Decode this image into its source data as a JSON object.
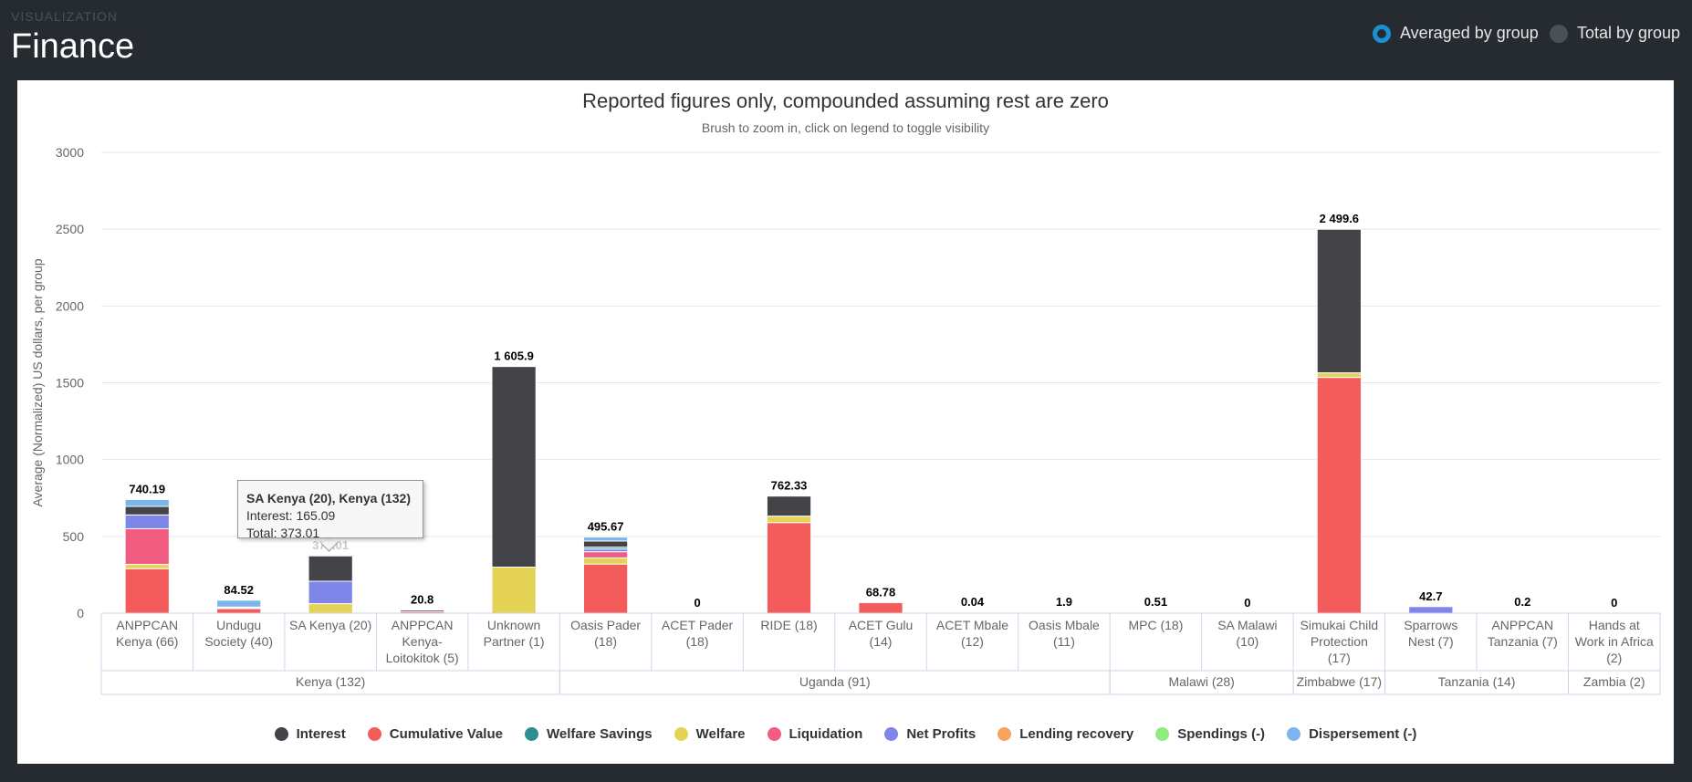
{
  "header": {
    "section_label": "VISUALIZATION",
    "title": "Finance"
  },
  "view_toggle": {
    "options": [
      {
        "label": "Averaged by group",
        "selected": true
      },
      {
        "label": "Total by group",
        "selected": false
      }
    ]
  },
  "tooltip": {
    "title": "SA Kenya (20), Kenya (132)",
    "line1": "Interest: 165.09",
    "line2": "Total: 373.01"
  },
  "chart_data": {
    "type": "bar",
    "stacked": true,
    "title": "Reported figures only, compounded assuming rest are zero",
    "subtitle": "Brush to zoom in, click on legend to toggle visibility",
    "ylabel": "Average (Normalized) US dollars, per group",
    "xlabel": "",
    "ylim": [
      0,
      3000
    ],
    "yticks": [
      0,
      500,
      1000,
      1500,
      2000,
      2500,
      3000
    ],
    "grid": true,
    "legend_position": "bottom",
    "categories": [
      [
        "ANPPCAN",
        "Kenya (66)"
      ],
      [
        "Undugu",
        "Society (40)"
      ],
      [
        "SA Kenya (20)"
      ],
      [
        "ANPPCAN",
        "Kenya-",
        "Loitokitok (5)"
      ],
      [
        "Unknown",
        "Partner (1)"
      ],
      [
        "Oasis Pader",
        "(18)"
      ],
      [
        "ACET Pader",
        "(18)"
      ],
      [
        "RIDE (18)"
      ],
      [
        "ACET Gulu",
        "(14)"
      ],
      [
        "ACET Mbale",
        "(12)"
      ],
      [
        "Oasis Mbale",
        "(11)"
      ],
      [
        "MPC (18)"
      ],
      [
        "SA Malawi",
        "(10)"
      ],
      [
        "Simukai Child",
        "Protection",
        "(17)"
      ],
      [
        "Sparrows",
        "Nest (7)"
      ],
      [
        "ANPPCAN",
        "Tanzania (7)"
      ],
      [
        "Hands at",
        "Work in Africa",
        "(2)"
      ]
    ],
    "groups": [
      {
        "label": "Kenya (132)",
        "count": 5
      },
      {
        "label": "Uganda (91)",
        "count": 6
      },
      {
        "label": "Malawi (28)",
        "count": 2
      },
      {
        "label": "Zimbabwe (17)",
        "count": 1
      },
      {
        "label": "Tanzania (14)",
        "count": 2
      },
      {
        "label": "Zambia (2)",
        "count": 1
      }
    ],
    "totals": [
      "740.19",
      "84.52",
      "373.01",
      "20.8",
      "1 605.9",
      "495.67",
      "0",
      "762.33",
      "68.78",
      "0.04",
      "1.9",
      "0.51",
      "0",
      "2 499.6",
      "42.7",
      "0.2",
      "0"
    ],
    "series": [
      {
        "name": "Cumulative Value",
        "color": "#f45b5b",
        "values": [
          290,
          30,
          0,
          10,
          0,
          320,
          0,
          590,
          68.78,
          0.02,
          1,
          0.3,
          0,
          1535,
          0,
          0.1,
          0
        ]
      },
      {
        "name": "Welfare",
        "color": "#e4d354",
        "values": [
          28,
          0,
          62,
          0,
          300,
          40,
          0,
          42,
          0,
          0,
          0,
          0,
          0,
          30,
          0,
          0,
          0
        ]
      },
      {
        "name": "Liquidation",
        "color": "#f15c80",
        "values": [
          232,
          0,
          0,
          0,
          0,
          40,
          0,
          0,
          0,
          0,
          0,
          0,
          0,
          0,
          0,
          0,
          0
        ]
      },
      {
        "name": "Net Profits",
        "color": "#8085e9",
        "values": [
          90,
          4,
          145.92,
          0,
          0,
          18,
          0,
          0,
          0,
          0,
          0,
          0,
          0,
          0,
          42.7,
          0,
          0
        ]
      },
      {
        "name": "Welfare Savings",
        "color": "#2b908f",
        "values": [
          0,
          0,
          0,
          0,
          0,
          12,
          0,
          0,
          0,
          0,
          0,
          0,
          0,
          0,
          0,
          0,
          0
        ]
      },
      {
        "name": "Interest",
        "color": "#434348",
        "values": [
          55,
          6,
          165.09,
          10.8,
          1305.9,
          40,
          0,
          130.33,
          0,
          0.02,
          0.9,
          0.21,
          0,
          934.6,
          0,
          0.1,
          0
        ]
      },
      {
        "name": "Lending recovery",
        "color": "#f7a35c",
        "values": [
          0,
          0,
          0,
          0,
          0,
          0,
          0,
          0,
          0,
          0,
          0,
          0,
          0,
          0,
          0,
          0,
          0
        ]
      },
      {
        "name": "Spendings (-)",
        "color": "#90ed7d",
        "values": [
          0,
          0,
          0,
          0,
          0,
          0,
          0,
          0,
          0,
          0,
          0,
          0,
          0,
          0,
          0,
          0,
          0
        ]
      },
      {
        "name": "Dispersement (-)",
        "color": "#7cb5ec",
        "values": [
          45.19,
          44.52,
          0,
          0,
          0,
          25.67,
          0,
          0,
          0,
          0,
          0,
          0,
          0,
          0,
          0,
          0,
          0
        ]
      }
    ],
    "legend": [
      {
        "name": "Interest",
        "color": "#434348"
      },
      {
        "name": "Cumulative Value",
        "color": "#f45b5b"
      },
      {
        "name": "Welfare Savings",
        "color": "#2b908f"
      },
      {
        "name": "Welfare",
        "color": "#e4d354"
      },
      {
        "name": "Liquidation",
        "color": "#f15c80"
      },
      {
        "name": "Net Profits",
        "color": "#8085e9"
      },
      {
        "name": "Lending recovery",
        "color": "#f7a35c"
      },
      {
        "name": "Spendings (-)",
        "color": "#90ed7d"
      },
      {
        "name": "Dispersement (-)",
        "color": "#7cb5ec"
      }
    ]
  }
}
